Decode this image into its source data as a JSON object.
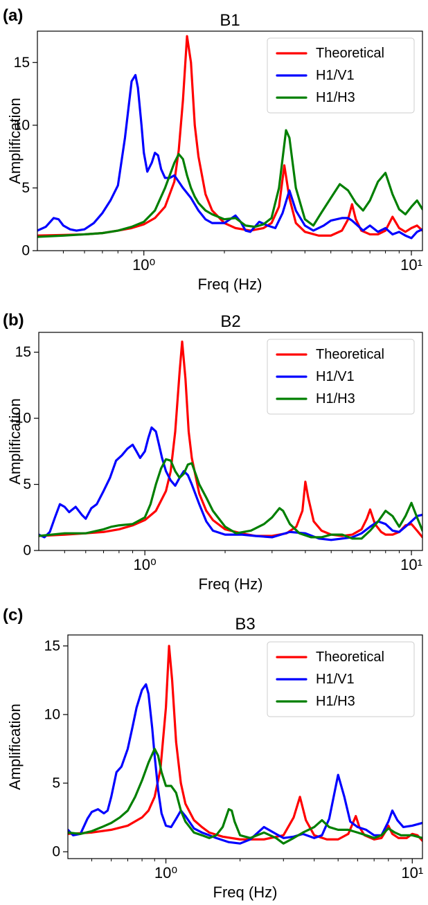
{
  "chart_data": [
    {
      "type": "line",
      "panel_label": "(a)",
      "title": "B1",
      "xlabel": "Freq (Hz)",
      "ylabel": "Amplification",
      "xscale": "log",
      "xlim": [
        0.4,
        11
      ],
      "ylim": [
        0,
        17.5
      ],
      "x_ticks": [
        {
          "value": 1,
          "label": "10⁰"
        },
        {
          "value": 10,
          "label": "10¹"
        }
      ],
      "y_ticks": [
        0,
        5,
        10,
        15
      ],
      "legend_position": "top-right",
      "grid": false,
      "series": [
        {
          "name": "Theoretical",
          "color": "#ff0000",
          "x": [
            0.4,
            0.5,
            0.6,
            0.7,
            0.8,
            0.9,
            1.0,
            1.1,
            1.2,
            1.3,
            1.35,
            1.4,
            1.45,
            1.5,
            1.55,
            1.6,
            1.7,
            1.8,
            2.0,
            2.2,
            2.5,
            2.8,
            3.0,
            3.2,
            3.35,
            3.5,
            3.7,
            4.0,
            4.5,
            5.0,
            5.5,
            5.8,
            6.0,
            6.2,
            6.5,
            7.0,
            7.5,
            8.0,
            8.5,
            9.0,
            9.5,
            10.0,
            10.5,
            11.0
          ],
          "y": [
            1.2,
            1.25,
            1.3,
            1.4,
            1.6,
            1.8,
            2.1,
            2.6,
            3.5,
            5.5,
            8.0,
            12.0,
            17.1,
            15.0,
            10.0,
            7.5,
            4.5,
            3.2,
            2.2,
            1.8,
            1.6,
            1.8,
            2.2,
            3.5,
            6.8,
            4.2,
            2.2,
            1.5,
            1.2,
            1.2,
            1.6,
            2.5,
            3.7,
            2.5,
            1.6,
            1.3,
            1.3,
            1.6,
            2.7,
            1.8,
            1.5,
            1.8,
            2.0,
            1.6
          ]
        },
        {
          "name": "H1/V1",
          "color": "#0000ff",
          "x": [
            0.4,
            0.43,
            0.46,
            0.48,
            0.5,
            0.53,
            0.56,
            0.6,
            0.65,
            0.7,
            0.75,
            0.8,
            0.85,
            0.9,
            0.93,
            0.95,
            0.98,
            1.0,
            1.03,
            1.07,
            1.1,
            1.13,
            1.16,
            1.2,
            1.25,
            1.3,
            1.35,
            1.4,
            1.5,
            1.6,
            1.7,
            1.8,
            2.0,
            2.2,
            2.3,
            2.4,
            2.5,
            2.7,
            2.9,
            3.1,
            3.3,
            3.5,
            3.7,
            4.0,
            4.3,
            4.7,
            5.0,
            5.5,
            5.8,
            6.0,
            6.3,
            6.6,
            7.0,
            7.5,
            8.0,
            8.5,
            9.0,
            9.5,
            10.0,
            10.5,
            11.0
          ],
          "y": [
            1.6,
            1.9,
            2.6,
            2.5,
            2.0,
            1.7,
            1.6,
            1.7,
            2.2,
            3.0,
            4.0,
            5.2,
            9.0,
            13.5,
            14.0,
            13.0,
            10.0,
            7.8,
            6.3,
            7.0,
            7.8,
            7.6,
            6.5,
            5.8,
            5.8,
            6.0,
            5.5,
            5.0,
            4.2,
            3.2,
            2.5,
            2.2,
            2.2,
            2.8,
            2.3,
            1.6,
            1.5,
            2.3,
            2.0,
            1.8,
            3.0,
            4.8,
            3.2,
            2.0,
            1.6,
            2.0,
            2.4,
            2.6,
            2.6,
            2.4,
            2.0,
            1.6,
            2.0,
            1.5,
            1.8,
            1.3,
            1.5,
            1.2,
            1.0,
            1.5,
            1.7
          ]
        },
        {
          "name": "H1/H3",
          "color": "#007f00",
          "x": [
            0.4,
            0.5,
            0.6,
            0.7,
            0.8,
            0.9,
            1.0,
            1.1,
            1.2,
            1.3,
            1.35,
            1.4,
            1.45,
            1.5,
            1.55,
            1.6,
            1.7,
            1.8,
            2.0,
            2.2,
            2.4,
            2.6,
            2.8,
            3.0,
            3.2,
            3.4,
            3.5,
            3.7,
            4.0,
            4.3,
            4.6,
            5.0,
            5.4,
            5.8,
            6.2,
            6.6,
            7.0,
            7.5,
            8.0,
            8.5,
            9.0,
            9.5,
            10.0,
            10.5,
            11.0
          ],
          "y": [
            1.1,
            1.2,
            1.3,
            1.4,
            1.6,
            1.9,
            2.3,
            3.2,
            5.0,
            7.0,
            7.7,
            7.3,
            6.0,
            5.0,
            4.3,
            3.8,
            3.2,
            2.9,
            2.5,
            2.6,
            2.0,
            1.9,
            2.1,
            2.6,
            5.0,
            9.6,
            9.0,
            5.0,
            2.5,
            2.0,
            3.0,
            4.2,
            5.3,
            4.8,
            3.8,
            3.2,
            4.0,
            5.5,
            6.2,
            4.5,
            3.3,
            2.9,
            3.5,
            4.0,
            3.3
          ]
        }
      ]
    },
    {
      "type": "line",
      "panel_label": "(b)",
      "title": "B2",
      "xlabel": "Freq (Hz)",
      "ylabel": "Amplification",
      "xscale": "log",
      "xlim": [
        0.4,
        11
      ],
      "ylim": [
        0,
        16.5
      ],
      "x_ticks": [
        {
          "value": 1,
          "label": "10⁰"
        },
        {
          "value": 10,
          "label": "10¹"
        }
      ],
      "y_ticks": [
        0,
        5,
        10,
        15
      ],
      "legend_position": "top-right",
      "grid": false,
      "series": [
        {
          "name": "Theoretical",
          "color": "#ff0000",
          "x": [
            0.4,
            0.5,
            0.6,
            0.7,
            0.8,
            0.9,
            1.0,
            1.1,
            1.2,
            1.25,
            1.3,
            1.35,
            1.38,
            1.42,
            1.46,
            1.5,
            1.6,
            1.7,
            1.8,
            2.0,
            2.3,
            2.6,
            3.0,
            3.4,
            3.7,
            3.9,
            4.0,
            4.1,
            4.3,
            4.6,
            5.0,
            5.5,
            6.0,
            6.5,
            6.8,
            7.0,
            7.3,
            7.7,
            8.0,
            8.5,
            9.0,
            9.5,
            10.0,
            10.5,
            11.0
          ],
          "y": [
            1.1,
            1.2,
            1.3,
            1.4,
            1.6,
            1.9,
            2.3,
            3.0,
            4.5,
            6.0,
            9.0,
            13.5,
            15.8,
            13.0,
            9.0,
            7.0,
            4.3,
            3.0,
            2.3,
            1.6,
            1.3,
            1.1,
            1.1,
            1.3,
            1.8,
            3.0,
            5.2,
            4.0,
            2.2,
            1.5,
            1.2,
            1.1,
            1.2,
            1.6,
            2.4,
            3.1,
            2.0,
            1.4,
            1.2,
            1.2,
            1.4,
            1.9,
            2.0,
            1.5,
            1.0
          ]
        },
        {
          "name": "H1/V1",
          "color": "#0000ff",
          "x": [
            0.4,
            0.42,
            0.44,
            0.46,
            0.48,
            0.5,
            0.52,
            0.55,
            0.58,
            0.6,
            0.63,
            0.66,
            0.7,
            0.74,
            0.78,
            0.82,
            0.86,
            0.9,
            0.93,
            0.96,
            1.0,
            1.03,
            1.06,
            1.1,
            1.13,
            1.16,
            1.2,
            1.25,
            1.3,
            1.35,
            1.4,
            1.45,
            1.5,
            1.6,
            1.7,
            1.8,
            2.0,
            2.3,
            2.6,
            3.0,
            3.5,
            4.0,
            4.5,
            5.0,
            5.5,
            6.0,
            6.5,
            7.0,
            7.5,
            8.0,
            8.5,
            9.0,
            9.5,
            10.0,
            10.5,
            11.0
          ],
          "y": [
            1.2,
            1.0,
            1.4,
            2.5,
            3.5,
            3.3,
            2.9,
            3.3,
            2.7,
            2.4,
            3.2,
            3.5,
            4.5,
            5.5,
            6.8,
            7.2,
            7.7,
            8.0,
            7.5,
            7.0,
            7.5,
            8.5,
            9.3,
            9.0,
            8.0,
            7.0,
            6.0,
            5.3,
            4.9,
            5.5,
            6.0,
            5.7,
            5.0,
            3.5,
            2.2,
            1.5,
            1.2,
            1.2,
            1.1,
            1.0,
            1.4,
            1.3,
            0.9,
            0.8,
            0.9,
            1.0,
            1.3,
            1.8,
            2.2,
            2.0,
            1.5,
            1.4,
            1.8,
            2.2,
            2.6,
            2.7
          ]
        },
        {
          "name": "H1/H3",
          "color": "#007f00",
          "x": [
            0.4,
            0.5,
            0.6,
            0.7,
            0.75,
            0.8,
            0.9,
            1.0,
            1.05,
            1.1,
            1.15,
            1.2,
            1.25,
            1.3,
            1.35,
            1.4,
            1.45,
            1.5,
            1.55,
            1.6,
            1.7,
            1.8,
            2.0,
            2.2,
            2.5,
            2.8,
            3.0,
            3.2,
            3.3,
            3.5,
            3.8,
            4.2,
            4.6,
            5.0,
            5.5,
            6.0,
            6.5,
            7.0,
            7.5,
            8.0,
            8.5,
            9.0,
            9.5,
            10.0,
            10.5,
            11.0
          ],
          "y": [
            1.1,
            1.3,
            1.3,
            1.6,
            1.8,
            1.9,
            2.0,
            2.5,
            3.5,
            5.0,
            6.2,
            6.9,
            6.8,
            6.0,
            5.5,
            5.8,
            6.5,
            6.6,
            5.8,
            5.0,
            4.0,
            3.0,
            1.8,
            1.3,
            1.5,
            2.0,
            2.5,
            3.2,
            3.0,
            2.0,
            1.3,
            1.0,
            1.0,
            1.2,
            1.2,
            0.9,
            0.9,
            1.5,
            2.2,
            3.0,
            2.6,
            1.8,
            2.6,
            3.6,
            2.5,
            1.5
          ]
        }
      ]
    },
    {
      "type": "line",
      "panel_label": "(c)",
      "title": "B3",
      "xlabel": "Freq (Hz)",
      "ylabel": "Amplification",
      "xscale": "log",
      "xlim": [
        0.4,
        11
      ],
      "ylim": [
        -0.5,
        15.8
      ],
      "x_ticks": [
        {
          "value": 1,
          "label": "10⁰"
        },
        {
          "value": 10,
          "label": "10¹"
        }
      ],
      "y_ticks": [
        0,
        5,
        10,
        15
      ],
      "legend_position": "top-right",
      "grid": false,
      "series": [
        {
          "name": "Theoretical",
          "color": "#ff0000",
          "x": [
            0.4,
            0.5,
            0.6,
            0.7,
            0.8,
            0.85,
            0.9,
            0.95,
            1.0,
            1.03,
            1.06,
            1.1,
            1.15,
            1.2,
            1.3,
            1.4,
            1.5,
            1.7,
            2.0,
            2.5,
            3.0,
            3.3,
            3.5,
            3.7,
            4.0,
            4.5,
            5.0,
            5.5,
            5.9,
            6.1,
            6.4,
            7.0,
            7.5,
            7.8,
            8.0,
            8.3,
            8.8,
            9.5,
            10.0,
            10.5,
            11.0
          ],
          "y": [
            1.3,
            1.4,
            1.6,
            1.9,
            2.5,
            3.0,
            4.0,
            6.0,
            10.5,
            15.0,
            12.5,
            8.0,
            5.0,
            3.5,
            2.3,
            1.8,
            1.4,
            1.1,
            0.9,
            0.9,
            1.2,
            2.5,
            4.0,
            2.3,
            1.2,
            0.9,
            0.9,
            1.3,
            2.6,
            1.8,
            1.2,
            0.9,
            1.0,
            1.5,
            1.9,
            1.3,
            1.0,
            1.0,
            1.3,
            1.2,
            0.8
          ]
        },
        {
          "name": "H1/V1",
          "color": "#0000ff",
          "x": [
            0.4,
            0.42,
            0.45,
            0.48,
            0.5,
            0.53,
            0.56,
            0.58,
            0.6,
            0.63,
            0.66,
            0.7,
            0.73,
            0.76,
            0.8,
            0.83,
            0.85,
            0.88,
            0.9,
            0.93,
            0.96,
            1.0,
            1.05,
            1.1,
            1.15,
            1.2,
            1.3,
            1.4,
            1.5,
            1.6,
            1.8,
            2.0,
            2.2,
            2.5,
            2.8,
            3.0,
            3.3,
            3.6,
            4.0,
            4.3,
            4.6,
            5.0,
            5.3,
            5.6,
            6.0,
            6.5,
            7.0,
            7.5,
            8.0,
            8.3,
            8.7,
            9.2,
            10.0,
            11.0
          ],
          "y": [
            1.6,
            1.2,
            1.3,
            2.4,
            2.9,
            3.1,
            2.8,
            3.0,
            4.0,
            5.8,
            6.2,
            7.5,
            9.0,
            10.5,
            11.8,
            12.2,
            11.5,
            9.0,
            7.0,
            4.5,
            2.8,
            1.9,
            1.8,
            2.4,
            3.0,
            2.6,
            1.7,
            1.4,
            1.2,
            1.0,
            0.7,
            0.6,
            0.9,
            1.8,
            1.3,
            1.0,
            1.1,
            1.3,
            1.0,
            1.2,
            2.4,
            5.6,
            4.0,
            2.2,
            1.8,
            1.6,
            1.2,
            1.2,
            2.2,
            3.0,
            2.3,
            1.8,
            1.9,
            2.1
          ]
        },
        {
          "name": "H1/H3",
          "color": "#007f00",
          "x": [
            0.4,
            0.45,
            0.5,
            0.55,
            0.6,
            0.65,
            0.7,
            0.75,
            0.8,
            0.85,
            0.9,
            0.93,
            0.96,
            1.0,
            1.05,
            1.1,
            1.15,
            1.2,
            1.3,
            1.4,
            1.5,
            1.6,
            1.7,
            1.8,
            1.85,
            1.9,
            2.0,
            2.2,
            2.5,
            2.8,
            3.0,
            3.3,
            3.6,
            4.0,
            4.3,
            4.6,
            5.0,
            5.5,
            6.0,
            6.5,
            7.0,
            7.5,
            8.0,
            8.5,
            9.0,
            10.0,
            11.0
          ],
          "y": [
            1.4,
            1.3,
            1.5,
            1.8,
            2.1,
            2.5,
            3.0,
            4.0,
            5.2,
            6.5,
            7.5,
            7.0,
            5.8,
            4.8,
            4.8,
            4.3,
            3.0,
            2.2,
            1.4,
            1.2,
            1.0,
            1.2,
            1.8,
            3.1,
            3.0,
            2.2,
            1.2,
            1.0,
            1.4,
            1.0,
            0.6,
            1.0,
            1.4,
            1.8,
            2.3,
            1.8,
            1.6,
            1.6,
            1.4,
            1.2,
            1.0,
            1.2,
            1.7,
            1.4,
            1.2,
            1.2,
            1.0
          ]
        }
      ]
    }
  ]
}
